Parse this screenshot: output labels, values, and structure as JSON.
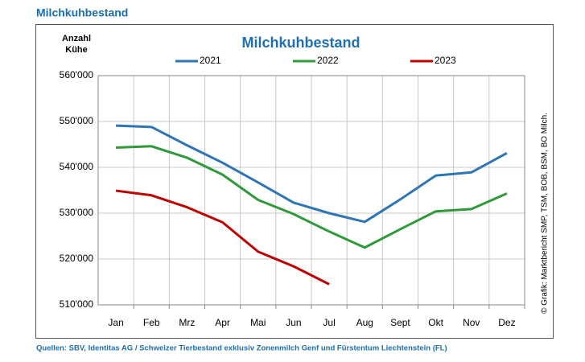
{
  "heading": "Milchkuhbestand",
  "source": "Quellen: SBV, Identitas AG / Schweizer Tierbestand exklusiv Zonenmilch Genf und Fürstentum Liechtenstein (FL)",
  "chart_data": {
    "type": "line",
    "title": "Milchkuhbestand",
    "y_label_lines": [
      "Anzahl",
      "Kühe"
    ],
    "credit": "© Grafik: Marktbericht SMP, TSM, BOB, BSM, BO Milch.",
    "categories": [
      "Jan",
      "Feb",
      "Mrz",
      "Apr",
      "Mai",
      "Jun",
      "Jul",
      "Aug",
      "Sept",
      "Okt",
      "Nov",
      "Dez"
    ],
    "series": [
      {
        "name": "2021",
        "color": "#2e75b6",
        "values": [
          549100,
          548800,
          544800,
          541000,
          536700,
          532300,
          530000,
          528100,
          533000,
          538200,
          538900,
          543100
        ]
      },
      {
        "name": "2022",
        "color": "#2f9a3a",
        "values": [
          544300,
          544600,
          542100,
          538400,
          532900,
          529800,
          526000,
          522500,
          526500,
          530400,
          530900,
          534300
        ]
      },
      {
        "name": "2023",
        "color": "#c00000",
        "values": [
          534900,
          533900,
          531300,
          528000,
          521600,
          518400,
          514500,
          null,
          null,
          null,
          null,
          null
        ]
      }
    ],
    "ylim": [
      510000,
      560000
    ],
    "yticks": [
      {
        "value": 510000,
        "label": "510'000"
      },
      {
        "value": 520000,
        "label": "520'000"
      },
      {
        "value": 530000,
        "label": "530'000"
      },
      {
        "value": 540000,
        "label": "540'000"
      },
      {
        "value": 550000,
        "label": "550'000"
      },
      {
        "value": 560000,
        "label": "560'000"
      }
    ],
    "grid": true,
    "legend": "top"
  }
}
